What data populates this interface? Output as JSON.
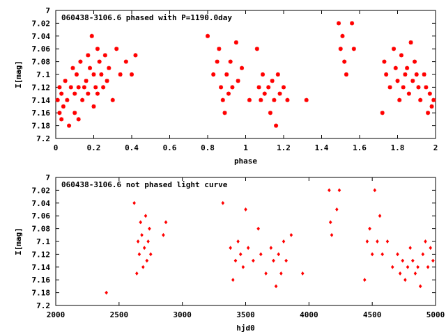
{
  "chart_data": [
    {
      "type": "scatter",
      "title": "060438-3106.6 phased with P=1190.0day",
      "xlabel": "phase",
      "ylabel": "I[mag]",
      "xlim": [
        0,
        2
      ],
      "ylim": [
        7.2,
        7.0
      ],
      "y_axis_inverted": true,
      "xticks": [
        "0",
        "0.2",
        "0.4",
        "0.6",
        "0.8",
        "1",
        "1.2",
        "1.4",
        "1.6",
        "1.8",
        "2"
      ],
      "yticks": [
        "7",
        "7.02",
        "7.04",
        "7.06",
        "7.08",
        "7.1",
        "7.12",
        "7.14",
        "7.16",
        "7.18",
        "7.2"
      ],
      "grid": false,
      "legend": "none",
      "series_color": "#ff0000",
      "x": [
        0.01,
        0.02,
        0.02,
        0.03,
        0.03,
        0.04,
        0.05,
        0.06,
        0.07,
        0.08,
        0.09,
        0.1,
        0.1,
        0.11,
        0.12,
        0.12,
        0.13,
        0.14,
        0.15,
        0.16,
        0.17,
        0.17,
        0.18,
        0.19,
        0.2,
        0.2,
        0.21,
        0.22,
        0.22,
        0.23,
        0.24,
        0.25,
        0.26,
        0.27,
        0.28,
        0.3,
        0.32,
        0.34,
        0.37,
        0.4,
        0.42,
        0.8,
        0.83,
        0.85,
        0.86,
        0.87,
        0.88,
        0.89,
        0.9,
        0.91,
        0.92,
        0.93,
        0.95,
        0.96,
        0.98,
        1.02,
        1.06,
        1.07,
        1.08,
        1.09,
        1.1,
        1.12,
        1.13,
        1.14,
        1.15,
        1.16,
        1.17,
        1.18,
        1.2,
        1.22,
        1.32,
        1.49,
        1.5,
        1.51,
        1.52,
        1.53,
        1.56,
        1.57,
        1.72,
        1.73,
        1.74,
        1.76,
        1.78,
        1.79,
        1.8,
        1.81,
        1.82,
        1.83,
        1.84,
        1.85,
        1.86,
        1.87,
        1.88,
        1.89,
        1.9,
        1.91,
        1.92,
        1.94,
        1.95,
        1.96,
        1.97,
        1.98,
        1.99
      ],
      "y": [
        7.14,
        7.12,
        7.16,
        7.13,
        7.17,
        7.15,
        7.11,
        7.14,
        7.18,
        7.12,
        7.09,
        7.13,
        7.16,
        7.1,
        7.12,
        7.17,
        7.08,
        7.14,
        7.12,
        7.11,
        7.07,
        7.13,
        7.09,
        7.04,
        7.15,
        7.1,
        7.12,
        7.06,
        7.13,
        7.08,
        7.1,
        7.12,
        7.07,
        7.11,
        7.09,
        7.14,
        7.06,
        7.1,
        7.08,
        7.1,
        7.07,
        7.04,
        7.1,
        7.08,
        7.06,
        7.12,
        7.14,
        7.16,
        7.1,
        7.13,
        7.08,
        7.12,
        7.05,
        7.11,
        7.09,
        7.14,
        7.06,
        7.12,
        7.14,
        7.1,
        7.13,
        7.12,
        7.16,
        7.11,
        7.14,
        7.18,
        7.1,
        7.13,
        7.12,
        7.14,
        7.14,
        7.02,
        7.06,
        7.04,
        7.08,
        7.1,
        7.02,
        7.06,
        7.16,
        7.08,
        7.1,
        7.12,
        7.06,
        7.09,
        7.11,
        7.14,
        7.07,
        7.12,
        7.1,
        7.09,
        7.13,
        7.05,
        7.11,
        7.08,
        7.1,
        7.12,
        7.14,
        7.1,
        7.12,
        7.16,
        7.13,
        7.15,
        7.14
      ]
    },
    {
      "type": "scatter",
      "title": "060438-3106.6 not phased light curve",
      "xlabel": "hjd0",
      "ylabel": "I[mag]",
      "xlim": [
        2000,
        5000
      ],
      "ylim": [
        7.2,
        7.0
      ],
      "y_axis_inverted": true,
      "xticks": [
        "2000",
        "2500",
        "3000",
        "3500",
        "4000",
        "4500",
        "5000"
      ],
      "yticks": [
        "7",
        "7.02",
        "7.04",
        "7.06",
        "7.08",
        "7.1",
        "7.12",
        "7.14",
        "7.16",
        "7.18",
        "7.2"
      ],
      "grid": false,
      "legend": "none",
      "series_color": "#ff0000",
      "x": [
        2400,
        2620,
        2640,
        2650,
        2660,
        2670,
        2680,
        2690,
        2700,
        2710,
        2720,
        2730,
        2740,
        2750,
        2850,
        2870,
        3320,
        3380,
        3400,
        3420,
        3440,
        3460,
        3480,
        3500,
        3520,
        3560,
        3600,
        3620,
        3660,
        3700,
        3720,
        3740,
        3760,
        3780,
        3800,
        3820,
        3860,
        3950,
        4160,
        4170,
        4180,
        4220,
        4240,
        4440,
        4460,
        4480,
        4500,
        4520,
        4540,
        4560,
        4580,
        4620,
        4660,
        4700,
        4720,
        4740,
        4760,
        4780,
        4800,
        4820,
        4840,
        4860,
        4880,
        4900,
        4920,
        4940,
        4960,
        4980
      ],
      "y": [
        7.18,
        7.04,
        7.15,
        7.1,
        7.12,
        7.07,
        7.09,
        7.14,
        7.11,
        7.06,
        7.13,
        7.1,
        7.08,
        7.12,
        7.09,
        7.07,
        7.04,
        7.11,
        7.16,
        7.13,
        7.1,
        7.12,
        7.14,
        7.05,
        7.11,
        7.13,
        7.08,
        7.12,
        7.15,
        7.11,
        7.13,
        7.17,
        7.12,
        7.15,
        7.1,
        7.13,
        7.09,
        7.15,
        7.02,
        7.07,
        7.09,
        7.05,
        7.02,
        7.16,
        7.1,
        7.08,
        7.12,
        7.02,
        7.1,
        7.06,
        7.12,
        7.1,
        7.14,
        7.12,
        7.15,
        7.13,
        7.16,
        7.14,
        7.11,
        7.13,
        7.15,
        7.14,
        7.17,
        7.12,
        7.1,
        7.14,
        7.11,
        7.13
      ]
    }
  ]
}
